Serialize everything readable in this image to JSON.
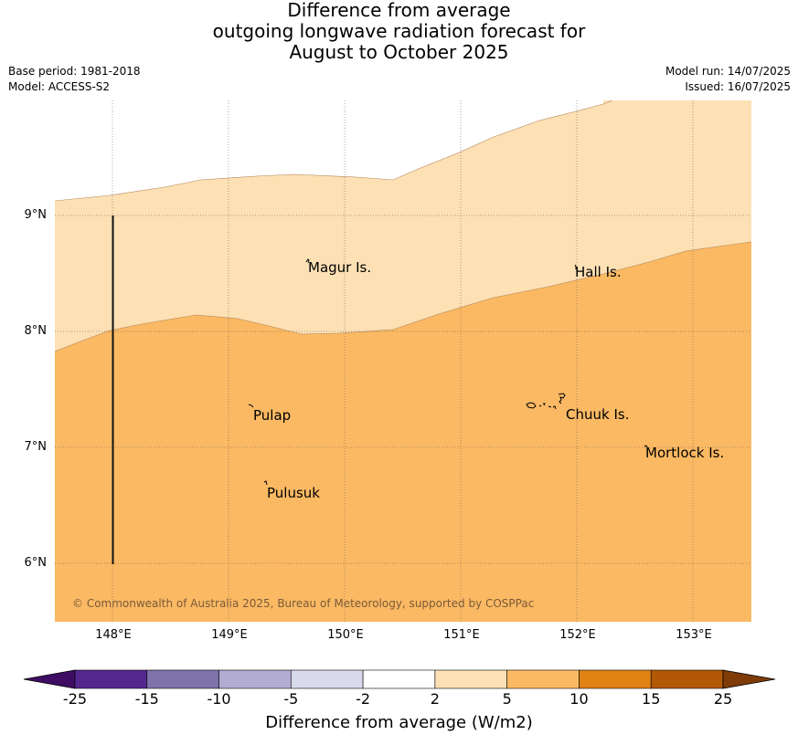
{
  "title": {
    "line1": "Difference from average",
    "line2": "outgoing longwave radiation forecast for",
    "line3": "August to October 2025"
  },
  "meta": {
    "base_period": "Base period: 1981-2018",
    "model": "Model: ACCESS-S2",
    "model_run": "Model run: 14/07/2025",
    "issued": "Issued: 16/07/2025"
  },
  "axes": {
    "latitude_labels": [
      "9°N",
      "8°N",
      "7°N",
      "6°N"
    ],
    "longitude_labels": [
      "148°E",
      "149°E",
      "150°E",
      "151°E",
      "152°E",
      "153°E"
    ]
  },
  "places": [
    {
      "name": "Magur Is."
    },
    {
      "name": "Hall Is."
    },
    {
      "name": "Pulap"
    },
    {
      "name": "Chuuk Is."
    },
    {
      "name": "Mortlock Is."
    },
    {
      "name": "Pulusuk"
    }
  ],
  "copyright": "© Commonwealth of Australia 2025, Bureau of Meteorology, supported by COSPPac",
  "colorbar": {
    "label": "Difference from average (W/m2)",
    "ticks": [
      "-25",
      "-15",
      "-10",
      "-5",
      "-2",
      "2",
      "5",
      "10",
      "15",
      "25"
    ],
    "colors": [
      "#3f0d64",
      "#54278f",
      "#8073ac",
      "#b2abd2",
      "#d8daeb",
      "#ffffff",
      "#fde0b4",
      "#fbb963",
      "#e08214",
      "#b35806",
      "#7f3b08"
    ]
  },
  "map_colors": {
    "band_2_5": "#fde0b4",
    "band_5_10": "#fbb963"
  }
}
